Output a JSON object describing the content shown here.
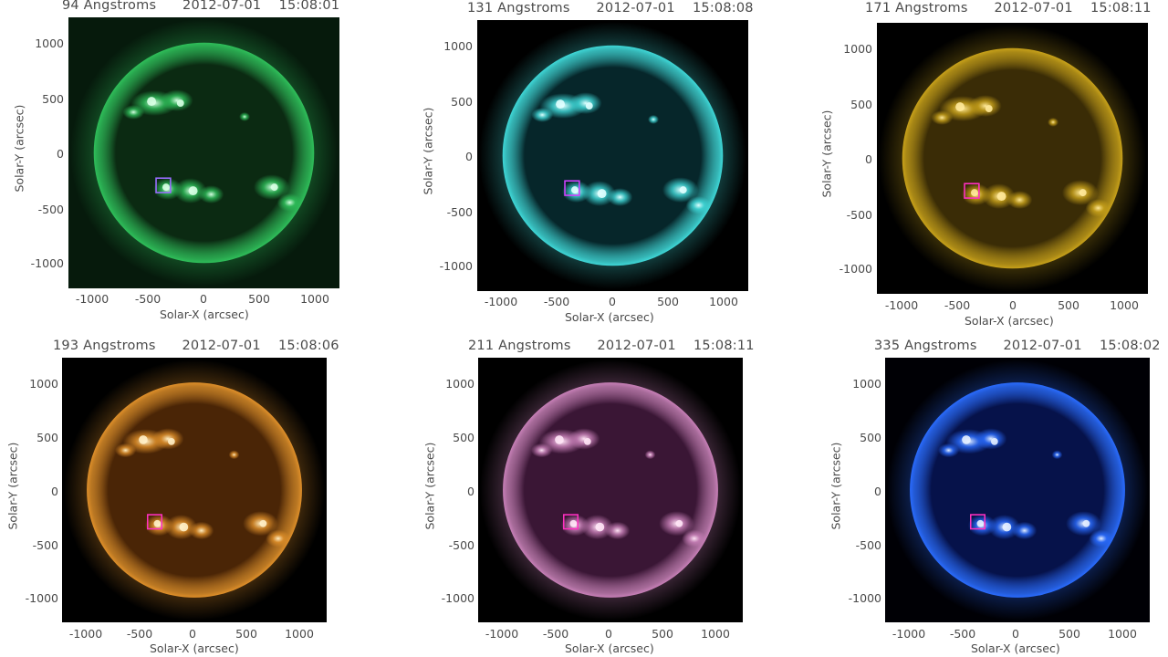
{
  "panels": [
    {
      "title": "94 Angstroms      2012-07-01    15:08:01",
      "xlabel": "Solar-X (arcsec)",
      "ylabel": "Solar-Y (arcsec)",
      "xticks": [
        "-1000",
        "-500",
        "0",
        "500",
        "1000"
      ],
      "yticks": [
        "1000",
        "500",
        "0",
        "-500",
        "-1000"
      ],
      "colors": {
        "limb": "#2fbf5a",
        "disk": "#0b2a12",
        "bright": "#d8ffe4",
        "bg": "#061a0c"
      },
      "box_color": "#9a6cff"
    },
    {
      "title": "131 Angstroms      2012-07-01    15:08:08",
      "xlabel": "Solar-X (arcsec)",
      "ylabel": "Solar-Y (arcsec)",
      "xticks": [
        "-1000",
        "-500",
        "0",
        "500",
        "1000"
      ],
      "yticks": [
        "1000",
        "500",
        "0",
        "-500",
        "-1000"
      ],
      "colors": {
        "limb": "#3fd8d8",
        "disk": "#06262a",
        "bright": "#e0ffff",
        "bg": "#000000"
      },
      "box_color": "#d040ff"
    },
    {
      "title": "171 Angstroms      2012-07-01    15:08:11",
      "xlabel": "Solar-X (arcsec)",
      "ylabel": "Solar-Y (arcsec)",
      "xticks": [
        "-1000",
        "-500",
        "0",
        "500",
        "1000"
      ],
      "yticks": [
        "1000",
        "500",
        "0",
        "-500",
        "-1000"
      ],
      "colors": {
        "limb": "#c9a21a",
        "disk": "#3a2c06",
        "bright": "#ffe99a",
        "bg": "#000000"
      },
      "box_color": "#ff30c0"
    },
    {
      "title": "193 Angstroms      2012-07-01    15:08:06",
      "xlabel": "Solar-X (arcsec)",
      "ylabel": "Solar-Y (arcsec)",
      "xticks": [
        "-1000",
        "-500",
        "0",
        "500",
        "1000"
      ],
      "yticks": [
        "1000",
        "500",
        "0",
        "-500",
        "-1000"
      ],
      "colors": {
        "limb": "#e0902a",
        "disk": "#4a2506",
        "bright": "#fff0c8",
        "bg": "#000000"
      },
      "box_color": "#ff30c0"
    },
    {
      "title": "211 Angstroms      2012-07-01    15:08:11",
      "xlabel": "Solar-X (arcsec)",
      "ylabel": "Solar-Y (arcsec)",
      "xticks": [
        "-1000",
        "-500",
        "0",
        "500",
        "1000"
      ],
      "yticks": [
        "1000",
        "500",
        "0",
        "-500",
        "-1000"
      ],
      "colors": {
        "limb": "#c880b8",
        "disk": "#3a1635",
        "bright": "#ffe6f6",
        "bg": "#000000"
      },
      "box_color": "#ff30c0"
    },
    {
      "title": "335 Angstroms      2012-07-01    15:08:02",
      "xlabel": "Solar-X (arcsec)",
      "ylabel": "Solar-Y (arcsec)",
      "xticks": [
        "-1000",
        "-500",
        "0",
        "500",
        "1000"
      ],
      "yticks": [
        "1000",
        "500",
        "0",
        "-500",
        "-1000"
      ],
      "colors": {
        "limb": "#2a6cff",
        "disk": "#06124a",
        "bright": "#e6f0ff",
        "bg": "#000005"
      },
      "box_color": "#ff30c0"
    }
  ]
}
